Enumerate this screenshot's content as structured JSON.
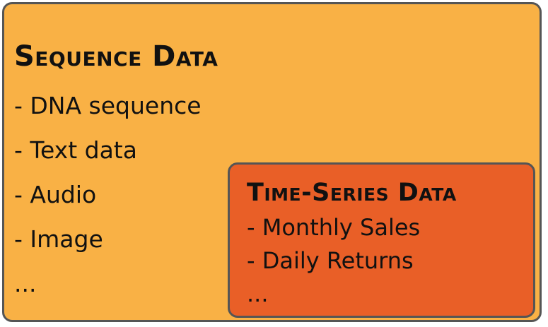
{
  "sequence_data": {
    "title": "Sequence Data",
    "items": [
      "- DNA sequence",
      "- Text data",
      "- Audio",
      "- Image",
      "..."
    ],
    "fill_color": "#f9b145"
  },
  "time_series_data": {
    "title": "Time-Series Data",
    "items": [
      "- Monthly Sales",
      "- Daily Returns",
      "..."
    ],
    "fill_color": "#e95f27"
  },
  "border_color": "#555555"
}
